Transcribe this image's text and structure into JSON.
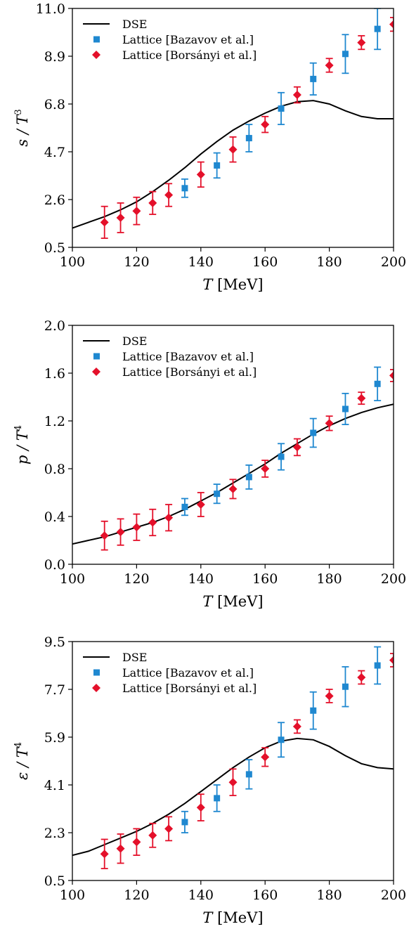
{
  "colors": {
    "dse": "#000000",
    "bazavov": "#1f88d0",
    "borsanyi": "#e4102a"
  },
  "legend": [
    "DSE",
    "Lattice [Bazavov et al.]",
    "Lattice [Borsányi et al.]"
  ],
  "chart_data": [
    {
      "type": "line",
      "ylabel_main": "s / T",
      "ylabel_sup": "3",
      "xlabel_main": "T",
      "xlabel_unit": " [MeV]",
      "xlim": [
        100,
        200
      ],
      "ylim": [
        0.5,
        11.0
      ],
      "xticks": [
        "100",
        "120",
        "140",
        "160",
        "180",
        "200"
      ],
      "yticks": [
        "0.5",
        "2.6",
        "4.7",
        "6.8",
        "8.9",
        "11.0"
      ],
      "series": [
        {
          "name": "DSE",
          "kind": "line",
          "x": [
            100,
            105,
            110,
            115,
            120,
            125,
            130,
            135,
            140,
            145,
            150,
            155,
            160,
            165,
            170,
            175,
            180,
            185,
            190,
            195,
            200
          ],
          "y": [
            1.35,
            1.6,
            1.85,
            2.15,
            2.5,
            2.95,
            3.45,
            4.0,
            4.6,
            5.15,
            5.65,
            6.05,
            6.4,
            6.7,
            6.9,
            6.95,
            6.8,
            6.5,
            6.25,
            6.15,
            6.15
          ]
        },
        {
          "name": "Lattice [Bazavov et al.]",
          "kind": "square",
          "x": [
            135,
            145,
            155,
            165,
            175,
            185,
            195
          ],
          "y": [
            3.1,
            4.1,
            5.3,
            6.6,
            7.9,
            9.0,
            10.1
          ],
          "err": [
            0.4,
            0.55,
            0.6,
            0.7,
            0.7,
            0.85,
            0.9
          ]
        },
        {
          "name": "Lattice [Borsányi et al.]",
          "kind": "diamond",
          "x": [
            110,
            115,
            120,
            125,
            130,
            140,
            150,
            160,
            170,
            180,
            190,
            200
          ],
          "y": [
            1.6,
            1.8,
            2.1,
            2.45,
            2.8,
            3.7,
            4.8,
            5.9,
            7.2,
            8.5,
            9.5,
            10.3
          ],
          "err": [
            0.7,
            0.65,
            0.6,
            0.5,
            0.5,
            0.55,
            0.55,
            0.35,
            0.35,
            0.3,
            0.3,
            0.3
          ]
        }
      ]
    },
    {
      "type": "line",
      "ylabel_main": "p / T",
      "ylabel_sup": "4",
      "xlabel_main": "T",
      "xlabel_unit": " [MeV]",
      "xlim": [
        100,
        200
      ],
      "ylim": [
        0.0,
        2.0
      ],
      "xticks": [
        "100",
        "120",
        "140",
        "160",
        "180",
        "200"
      ],
      "yticks": [
        "0.0",
        "0.4",
        "0.8",
        "1.2",
        "1.6",
        "2.0"
      ],
      "series": [
        {
          "name": "DSE",
          "kind": "line",
          "x": [
            100,
            105,
            110,
            115,
            120,
            125,
            130,
            135,
            140,
            145,
            150,
            155,
            160,
            165,
            170,
            175,
            180,
            185,
            190,
            195,
            200
          ],
          "y": [
            0.17,
            0.2,
            0.23,
            0.27,
            0.31,
            0.35,
            0.4,
            0.46,
            0.53,
            0.6,
            0.68,
            0.76,
            0.84,
            0.93,
            1.01,
            1.09,
            1.16,
            1.22,
            1.27,
            1.31,
            1.34
          ]
        },
        {
          "name": "Lattice [Bazavov et al.]",
          "kind": "square",
          "x": [
            135,
            145,
            155,
            165,
            175,
            185,
            195
          ],
          "y": [
            0.48,
            0.59,
            0.73,
            0.9,
            1.1,
            1.3,
            1.51
          ],
          "err": [
            0.07,
            0.08,
            0.1,
            0.11,
            0.12,
            0.13,
            0.14
          ]
        },
        {
          "name": "Lattice [Borsányi et al.]",
          "kind": "diamond",
          "x": [
            110,
            115,
            120,
            125,
            130,
            140,
            150,
            160,
            170,
            180,
            190,
            200
          ],
          "y": [
            0.24,
            0.27,
            0.31,
            0.35,
            0.39,
            0.5,
            0.63,
            0.8,
            0.98,
            1.18,
            1.39,
            1.58
          ],
          "err": [
            0.12,
            0.11,
            0.11,
            0.11,
            0.11,
            0.1,
            0.08,
            0.07,
            0.07,
            0.06,
            0.05,
            0.05
          ]
        }
      ]
    },
    {
      "type": "line",
      "ylabel_main": "ε / T",
      "ylabel_sup": "4",
      "xlabel_main": "T",
      "xlabel_unit": " [MeV]",
      "xlim": [
        100,
        200
      ],
      "ylim": [
        0.5,
        9.5
      ],
      "xticks": [
        "100",
        "120",
        "140",
        "160",
        "180",
        "200"
      ],
      "yticks": [
        "0.5",
        "2.3",
        "4.1",
        "5.9",
        "7.7",
        "9.5"
      ],
      "series": [
        {
          "name": "DSE",
          "kind": "line",
          "x": [
            100,
            105,
            110,
            115,
            120,
            125,
            130,
            135,
            140,
            145,
            150,
            155,
            160,
            165,
            170,
            175,
            180,
            185,
            190,
            195,
            200
          ],
          "y": [
            1.45,
            1.6,
            1.85,
            2.1,
            2.35,
            2.65,
            3.0,
            3.4,
            3.85,
            4.3,
            4.75,
            5.15,
            5.5,
            5.75,
            5.85,
            5.8,
            5.55,
            5.2,
            4.9,
            4.75,
            4.7
          ]
        },
        {
          "name": "Lattice [Bazavov et al.]",
          "kind": "square",
          "x": [
            135,
            145,
            155,
            165,
            175,
            185,
            195
          ],
          "y": [
            2.7,
            3.6,
            4.5,
            5.8,
            6.9,
            7.8,
            8.6
          ],
          "err": [
            0.4,
            0.5,
            0.55,
            0.65,
            0.7,
            0.75,
            0.7
          ]
        },
        {
          "name": "Lattice [Borsányi et al.]",
          "kind": "diamond",
          "x": [
            110,
            115,
            120,
            125,
            130,
            140,
            150,
            160,
            170,
            180,
            190,
            200
          ],
          "y": [
            1.5,
            1.7,
            1.95,
            2.2,
            2.45,
            3.25,
            4.2,
            5.15,
            6.3,
            7.45,
            8.15,
            8.8
          ],
          "err": [
            0.55,
            0.55,
            0.5,
            0.45,
            0.45,
            0.5,
            0.5,
            0.35,
            0.25,
            0.25,
            0.25,
            0.25
          ]
        }
      ]
    }
  ]
}
